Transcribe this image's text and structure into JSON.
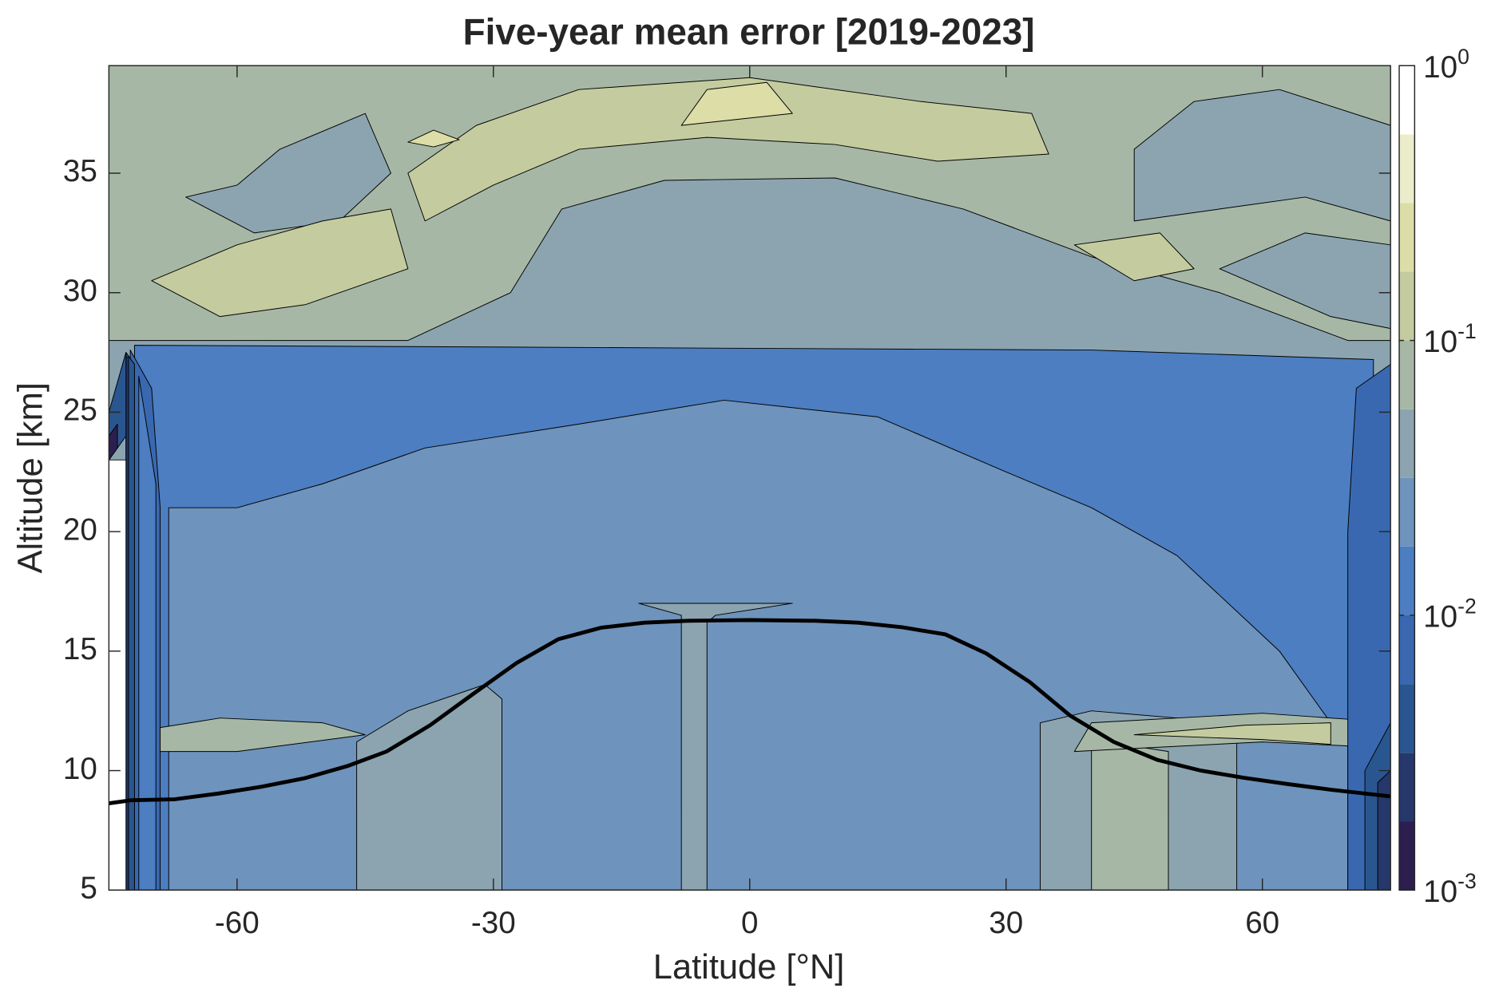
{
  "chart_data": {
    "type": "contour",
    "title": "Five-year mean error [2019-2023]",
    "xlabel": "Latitude [°N]",
    "ylabel": "Altitude [km]",
    "xlim": [
      -75,
      75
    ],
    "ylim": [
      5,
      39.5
    ],
    "xticks": [
      -60,
      -30,
      0,
      30,
      60
    ],
    "yticks": [
      5,
      10,
      15,
      20,
      25,
      30,
      35
    ],
    "line": {
      "color": "#000000",
      "x": [
        -75,
        -72.4,
        -67.3,
        -62.2,
        -57.2,
        -52.1,
        -47.0,
        -42.5,
        -37.4,
        -32.4,
        -27.3,
        -22.4,
        -17.4,
        -12.3,
        -7.2,
        0,
        7.7,
        12.7,
        17.8,
        22.9,
        27.7,
        32.8,
        37.5,
        42.6,
        47.7,
        52.8,
        57.8,
        62.9,
        68.0,
        75
      ],
      "y": [
        8.63,
        8.76,
        8.8,
        9.04,
        9.32,
        9.68,
        10.2,
        10.8,
        11.9,
        13.2,
        14.5,
        15.5,
        15.98,
        16.19,
        16.27,
        16.3,
        16.27,
        16.19,
        16.0,
        15.7,
        14.9,
        13.7,
        12.3,
        11.2,
        10.45,
        10.0,
        9.7,
        9.44,
        9.2,
        8.92
      ]
    },
    "colorbar": {
      "scale": "log",
      "lim": [
        0.001,
        1
      ],
      "levels": [
        0.001,
        0.00178,
        0.00316,
        0.00562,
        0.01,
        0.0178,
        0.0316,
        0.0562,
        0.1,
        0.178,
        0.316,
        0.562,
        1
      ],
      "colors": [
        "#2c1f4f",
        "#26376b",
        "#2a5690",
        "#3a68b0",
        "#4c7ec1",
        "#6e93bc",
        "#8ba4b0",
        "#a6b8a5",
        "#c4cb9f",
        "#dcdda7",
        "#ebecca",
        "#ffffff"
      ],
      "ticks": [
        {
          "value": 0.001,
          "label": "10",
          "superscript": "-3"
        },
        {
          "value": 0.01,
          "label": "10",
          "superscript": "-2"
        },
        {
          "value": 0.1,
          "label": "10",
          "superscript": "-1"
        },
        {
          "value": 1,
          "label": "10",
          "superscript": "0"
        }
      ]
    }
  }
}
